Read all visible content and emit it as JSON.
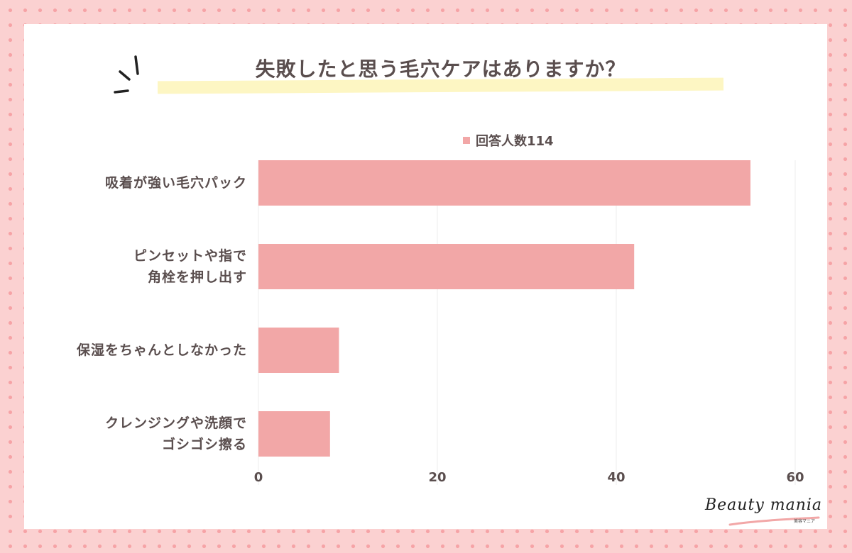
{
  "title": "失敗したと思う毛穴ケアはありますか？",
  "legend": {
    "label": "回答人数114"
  },
  "logo": {
    "text": "Beauty mania",
    "sub": "美容マニア"
  },
  "colors": {
    "bar": "#f2a7a7",
    "text": "#5a4e4e",
    "background": "#fbd1d1",
    "highlight": "#fdf6c3"
  },
  "chart_data": {
    "type": "bar",
    "orientation": "horizontal",
    "title": "失敗したと思う毛穴ケアはありますか？",
    "categories": [
      "吸着が強い毛穴パック",
      "ピンセットや指で角栓を押し出す",
      "保湿をちゃんとしなかった",
      "クレンジングや洗顔でゴシゴシ擦る"
    ],
    "category_label_lines": [
      [
        "吸着が強い毛穴パック"
      ],
      [
        "ピンセットや指で",
        "角栓を押し出す"
      ],
      [
        "保湿をちゃんとしなかった"
      ],
      [
        "クレンジングや洗顔で",
        "ゴシゴシ擦る"
      ]
    ],
    "series": [
      {
        "name": "回答人数114",
        "values": [
          55,
          42,
          9,
          8
        ]
      }
    ],
    "xlim": [
      0,
      60
    ],
    "xticks": [
      0,
      20,
      40,
      60
    ],
    "grid": true,
    "legend_position": "top"
  }
}
